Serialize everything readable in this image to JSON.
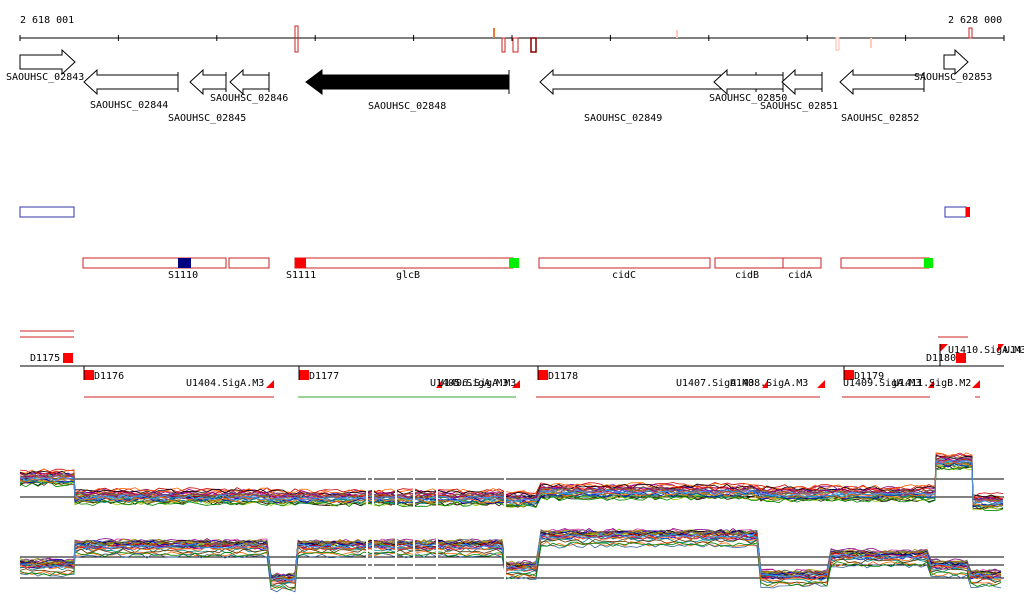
{
  "axis": {
    "start_label": "2 618 001",
    "end_label": "2 628 000"
  },
  "genes": [
    {
      "name": "SAOUHSC_02843",
      "strand": "+",
      "filled": false
    },
    {
      "name": "SAOUHSC_02844",
      "strand": "-",
      "filled": false
    },
    {
      "name": "SAOUHSC_02845",
      "strand": "-",
      "filled": false
    },
    {
      "name": "SAOUHSC_02846",
      "strand": "-",
      "filled": false
    },
    {
      "name": "SAOUHSC_02848",
      "strand": "-",
      "filled": true
    },
    {
      "name": "SAOUHSC_02849",
      "strand": "-",
      "filled": false
    },
    {
      "name": "SAOUHSC_02850",
      "strand": "-",
      "filled": false
    },
    {
      "name": "SAOUHSC_02851",
      "strand": "-",
      "filled": false
    },
    {
      "name": "SAOUHSC_02852",
      "strand": "-",
      "filled": false
    },
    {
      "name": "SAOUHSC_02853",
      "strand": "+",
      "filled": false
    }
  ],
  "features": [
    {
      "label": "S1110"
    },
    {
      "label": "S1111"
    },
    {
      "label": "glcB"
    },
    {
      "label": "cidC"
    },
    {
      "label": "cidB"
    },
    {
      "label": "cidA"
    }
  ],
  "segments": [
    {
      "label": "D1175"
    },
    {
      "label": "D1176"
    },
    {
      "label": "U1404.SigA.M3"
    },
    {
      "label": "D1177"
    },
    {
      "label": "U1405.SigA.M3"
    },
    {
      "label": "U1406.SigA.M3"
    },
    {
      "label": "D1178"
    },
    {
      "label": "U1407.SigA.M3"
    },
    {
      "label": "U1408.SigA.M3"
    },
    {
      "label": "D1179"
    },
    {
      "label": "U1409.SigA.M3"
    },
    {
      "label": "U1411.SigB.M2"
    },
    {
      "label": "D1180"
    },
    {
      "label": "U1410.SigA.M3"
    },
    {
      "label": "U14"
    }
  ],
  "colors": {
    "gene_outline": "#000000",
    "feature_outline": "#cc2222",
    "marker_red": "#ff0000",
    "marker_green": "#00ee00",
    "marker_navy": "#000080",
    "segment_green": "#33aa33"
  }
}
